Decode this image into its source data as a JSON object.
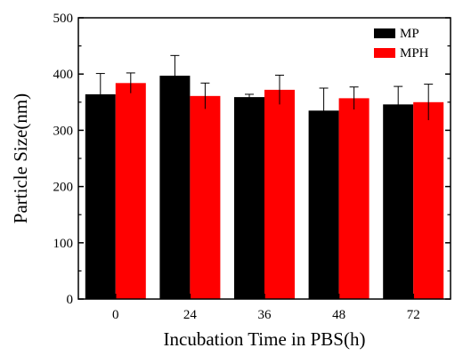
{
  "chart_data": {
    "type": "bar",
    "title": "",
    "xlabel": "Incubation Time in PBS(h)",
    "ylabel": "Particle Size(nm)",
    "categories": [
      "0",
      "24",
      "36",
      "48",
      "72"
    ],
    "ylim": [
      0,
      500
    ],
    "yticks": [
      "0",
      "100",
      "200",
      "300",
      "400",
      "500"
    ],
    "legend_position": "top-right",
    "series": [
      {
        "name": "MP",
        "color": "#000000",
        "values": [
          364,
          397,
          359,
          335,
          346
        ],
        "errors": [
          37,
          36,
          5,
          40,
          32
        ]
      },
      {
        "name": "MPH",
        "color": "#ff0000",
        "values": [
          384,
          361,
          372,
          357,
          350
        ],
        "errors": [
          18,
          23,
          26,
          20,
          32
        ]
      }
    ]
  }
}
